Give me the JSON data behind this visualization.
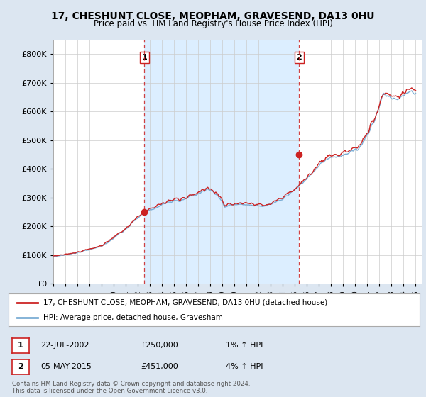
{
  "title": "17, CHESHUNT CLOSE, MEOPHAM, GRAVESEND, DA13 0HU",
  "subtitle": "Price paid vs. HM Land Registry's House Price Index (HPI)",
  "xlim_start": 1995.0,
  "xlim_end": 2025.5,
  "ylim": [
    0,
    850000
  ],
  "yticks": [
    0,
    100000,
    200000,
    300000,
    400000,
    500000,
    600000,
    700000,
    800000
  ],
  "ytick_labels": [
    "£0",
    "£100K",
    "£200K",
    "£300K",
    "£400K",
    "£500K",
    "£600K",
    "£700K",
    "£800K"
  ],
  "hpi_color": "#7aadd4",
  "price_color": "#cc2222",
  "shade_color": "#dceeff",
  "marker1_x": 2002.55,
  "marker1_y": 250000,
  "marker2_x": 2015.35,
  "marker2_y": 451000,
  "legend_label1": "17, CHESHUNT CLOSE, MEOPHAM, GRAVESEND, DA13 0HU (detached house)",
  "legend_label2": "HPI: Average price, detached house, Gravesham",
  "table_row1": [
    "1",
    "22-JUL-2002",
    "£250,000",
    "1% ↑ HPI"
  ],
  "table_row2": [
    "2",
    "05-MAY-2015",
    "£451,000",
    "4% ↑ HPI"
  ],
  "footnote1": "Contains HM Land Registry data © Crown copyright and database right 2024.",
  "footnote2": "This data is licensed under the Open Government Licence v3.0.",
  "background_color": "#dce6f1",
  "plot_bg_color": "#ffffff",
  "grid_color": "#cccccc"
}
